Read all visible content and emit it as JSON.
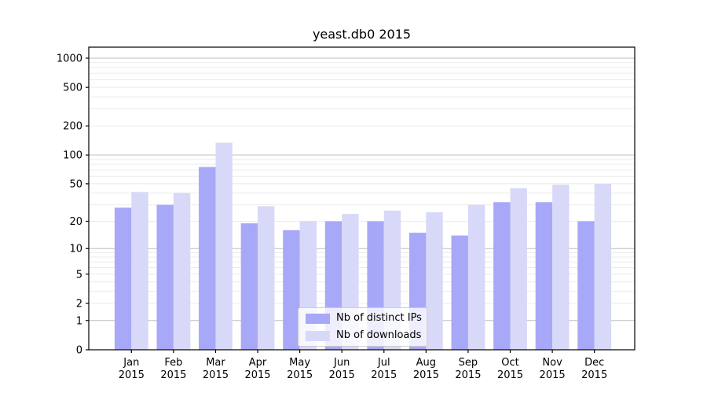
{
  "figure": {
    "background": "#ffffff",
    "text_color": "#000000"
  },
  "chart_data": {
    "type": "bar",
    "title": "yeast.db0 2015",
    "xlabel": "",
    "ylabel": "",
    "categories": [
      {
        "line1": "Jan",
        "line2": "2015"
      },
      {
        "line1": "Feb",
        "line2": "2015"
      },
      {
        "line1": "Mar",
        "line2": "2015"
      },
      {
        "line1": "Apr",
        "line2": "2015"
      },
      {
        "line1": "May",
        "line2": "2015"
      },
      {
        "line1": "Jun",
        "line2": "2015"
      },
      {
        "line1": "Jul",
        "line2": "2015"
      },
      {
        "line1": "Aug",
        "line2": "2015"
      },
      {
        "line1": "Sep",
        "line2": "2015"
      },
      {
        "line1": "Oct",
        "line2": "2015"
      },
      {
        "line1": "Nov",
        "line2": "2015"
      },
      {
        "line1": "Dec",
        "line2": "2015"
      }
    ],
    "series": [
      {
        "name": "Nb of distinct IPs",
        "color": "#a8a8f8",
        "values": [
          28,
          30,
          75,
          19,
          16,
          20,
          20,
          15,
          14,
          32,
          32,
          20
        ]
      },
      {
        "name": "Nb of downloads",
        "color": "#d8d8f8",
        "values": [
          41,
          40,
          134,
          29,
          20,
          24,
          26,
          25,
          30,
          45,
          49,
          50
        ]
      }
    ],
    "y_axis": {
      "scale": "log1p",
      "tick_values": [
        0,
        1,
        2,
        5,
        10,
        20,
        50,
        100,
        200,
        500,
        1000
      ],
      "tick_labels": [
        "0",
        "1",
        "2",
        "5",
        "10",
        "20",
        "50",
        "100",
        "200",
        "500",
        "1000"
      ],
      "ylim": [
        0,
        1275
      ]
    },
    "grid": {
      "major_values": [
        1,
        10,
        100,
        1000
      ],
      "major_color": "#bdbdbd",
      "minor_color": "#ebebeb",
      "spine_color": "#000000"
    },
    "legend": {
      "position": "lower-center-inside"
    }
  }
}
